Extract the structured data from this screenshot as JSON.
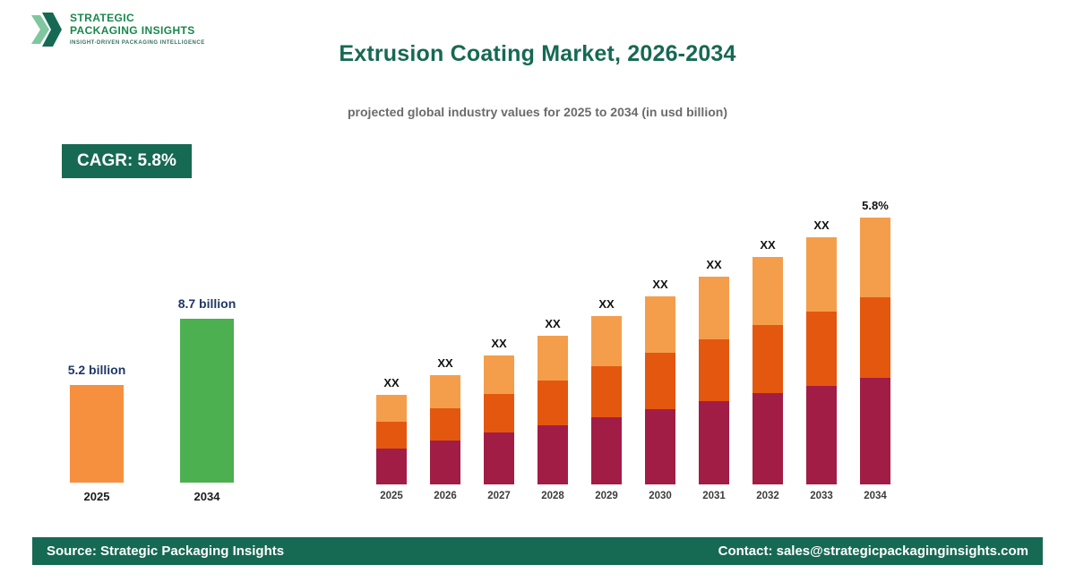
{
  "logo": {
    "line1": "STRATEGIC",
    "line2": "PACKAGING INSIGHTS",
    "tagline": "INSIGHT-DRIVEN PACKAGING INTELLIGENCE"
  },
  "header": {
    "title": "Extrusion Coating Market, 2026-2034",
    "subtitle": "projected global industry values for 2025 to 2034 (in usd billion)"
  },
  "cagr": {
    "label": "CAGR: 5.8%"
  },
  "theme": {
    "dark_green": "#166953",
    "logo_green": "#17884a",
    "summary_orange": "#F68F3E",
    "summary_green": "#4CAF50",
    "stack_maroon": "#A21D45",
    "stack_orange_red": "#E4570F",
    "stack_light_orange": "#F49E4C",
    "value_label_navy": "#1f3864"
  },
  "chart_data": [
    {
      "id": "summary",
      "type": "bar",
      "categories": [
        "2025",
        "2034"
      ],
      "values": [
        5.2,
        8.7
      ],
      "value_labels": [
        "5.2 billion",
        "8.7 billion"
      ],
      "bar_colors": [
        "#F68F3E",
        "#4CAF50"
      ],
      "ylabel": "USD billion",
      "grid": false
    },
    {
      "id": "main",
      "type": "bar",
      "stacked": true,
      "categories": [
        "2025",
        "2026",
        "2027",
        "2028",
        "2029",
        "2030",
        "2031",
        "2032",
        "2033",
        "2034"
      ],
      "bar_top_labels": [
        "XX",
        "XX",
        "XX",
        "XX",
        "XX",
        "XX",
        "XX",
        "XX",
        "XX",
        "5.8%"
      ],
      "totals_est_usd_billion": [
        5.2,
        5.5,
        5.8,
        6.2,
        6.5,
        6.9,
        7.3,
        7.7,
        8.2,
        8.7
      ],
      "series": [
        {
          "name": "segment-bottom",
          "color": "#A21D45",
          "share": 0.4
        },
        {
          "name": "segment-middle",
          "color": "#E4570F",
          "share": 0.3
        },
        {
          "name": "segment-top",
          "color": "#F49E4C",
          "share": 0.3
        }
      ],
      "grid": false,
      "legend": "none"
    }
  ],
  "footer": {
    "source": "Source: Strategic Packaging Insights",
    "contact": "Contact: sales@strategicpackaginginsights.com"
  }
}
